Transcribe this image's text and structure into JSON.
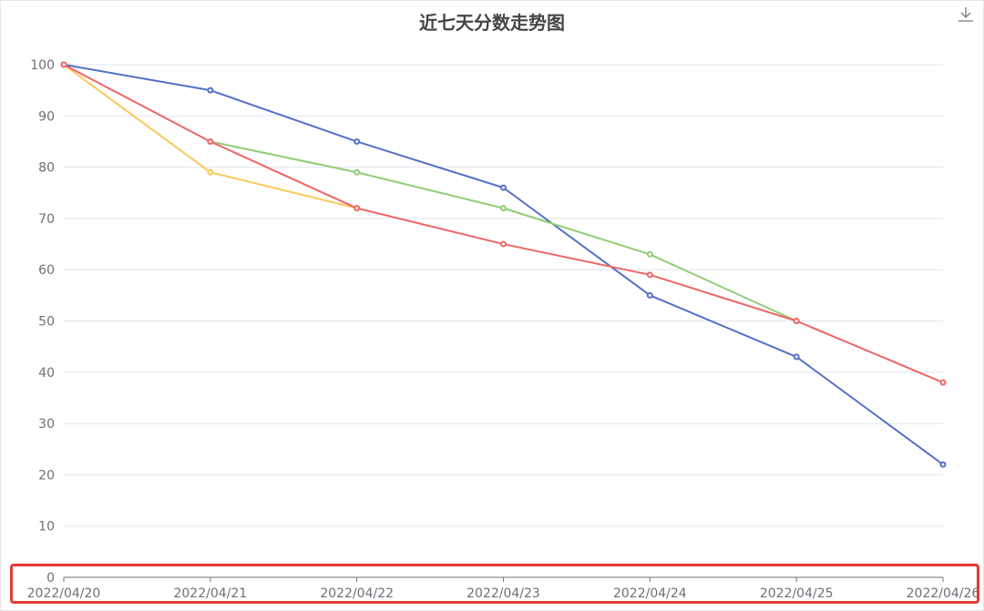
{
  "toolbox": {
    "download_icon": "download-icon"
  },
  "chart_data": {
    "type": "line",
    "title": "近七天分数走势图",
    "xlabel": "",
    "ylabel": "",
    "ylim": [
      0,
      100
    ],
    "yticks": [
      0,
      10,
      20,
      30,
      40,
      50,
      60,
      70,
      80,
      90,
      100
    ],
    "categories": [
      "2022/04/20",
      "2022/04/21",
      "2022/04/22",
      "2022/04/23",
      "2022/04/24",
      "2022/04/25",
      "2022/04/26"
    ],
    "grid": true,
    "legend": "none",
    "series": [
      {
        "color": "#5470c6",
        "values": [
          100,
          95,
          85,
          76,
          55,
          43,
          22
        ]
      },
      {
        "color": "#91cc75",
        "values": [
          null,
          85,
          79,
          72,
          63,
          50,
          null
        ]
      },
      {
        "color": "#fac858",
        "values": [
          100,
          79,
          72,
          null,
          null,
          null,
          null
        ]
      },
      {
        "color": "#ee6666",
        "values": [
          100,
          85,
          72,
          65,
          59,
          50,
          38
        ]
      }
    ]
  }
}
